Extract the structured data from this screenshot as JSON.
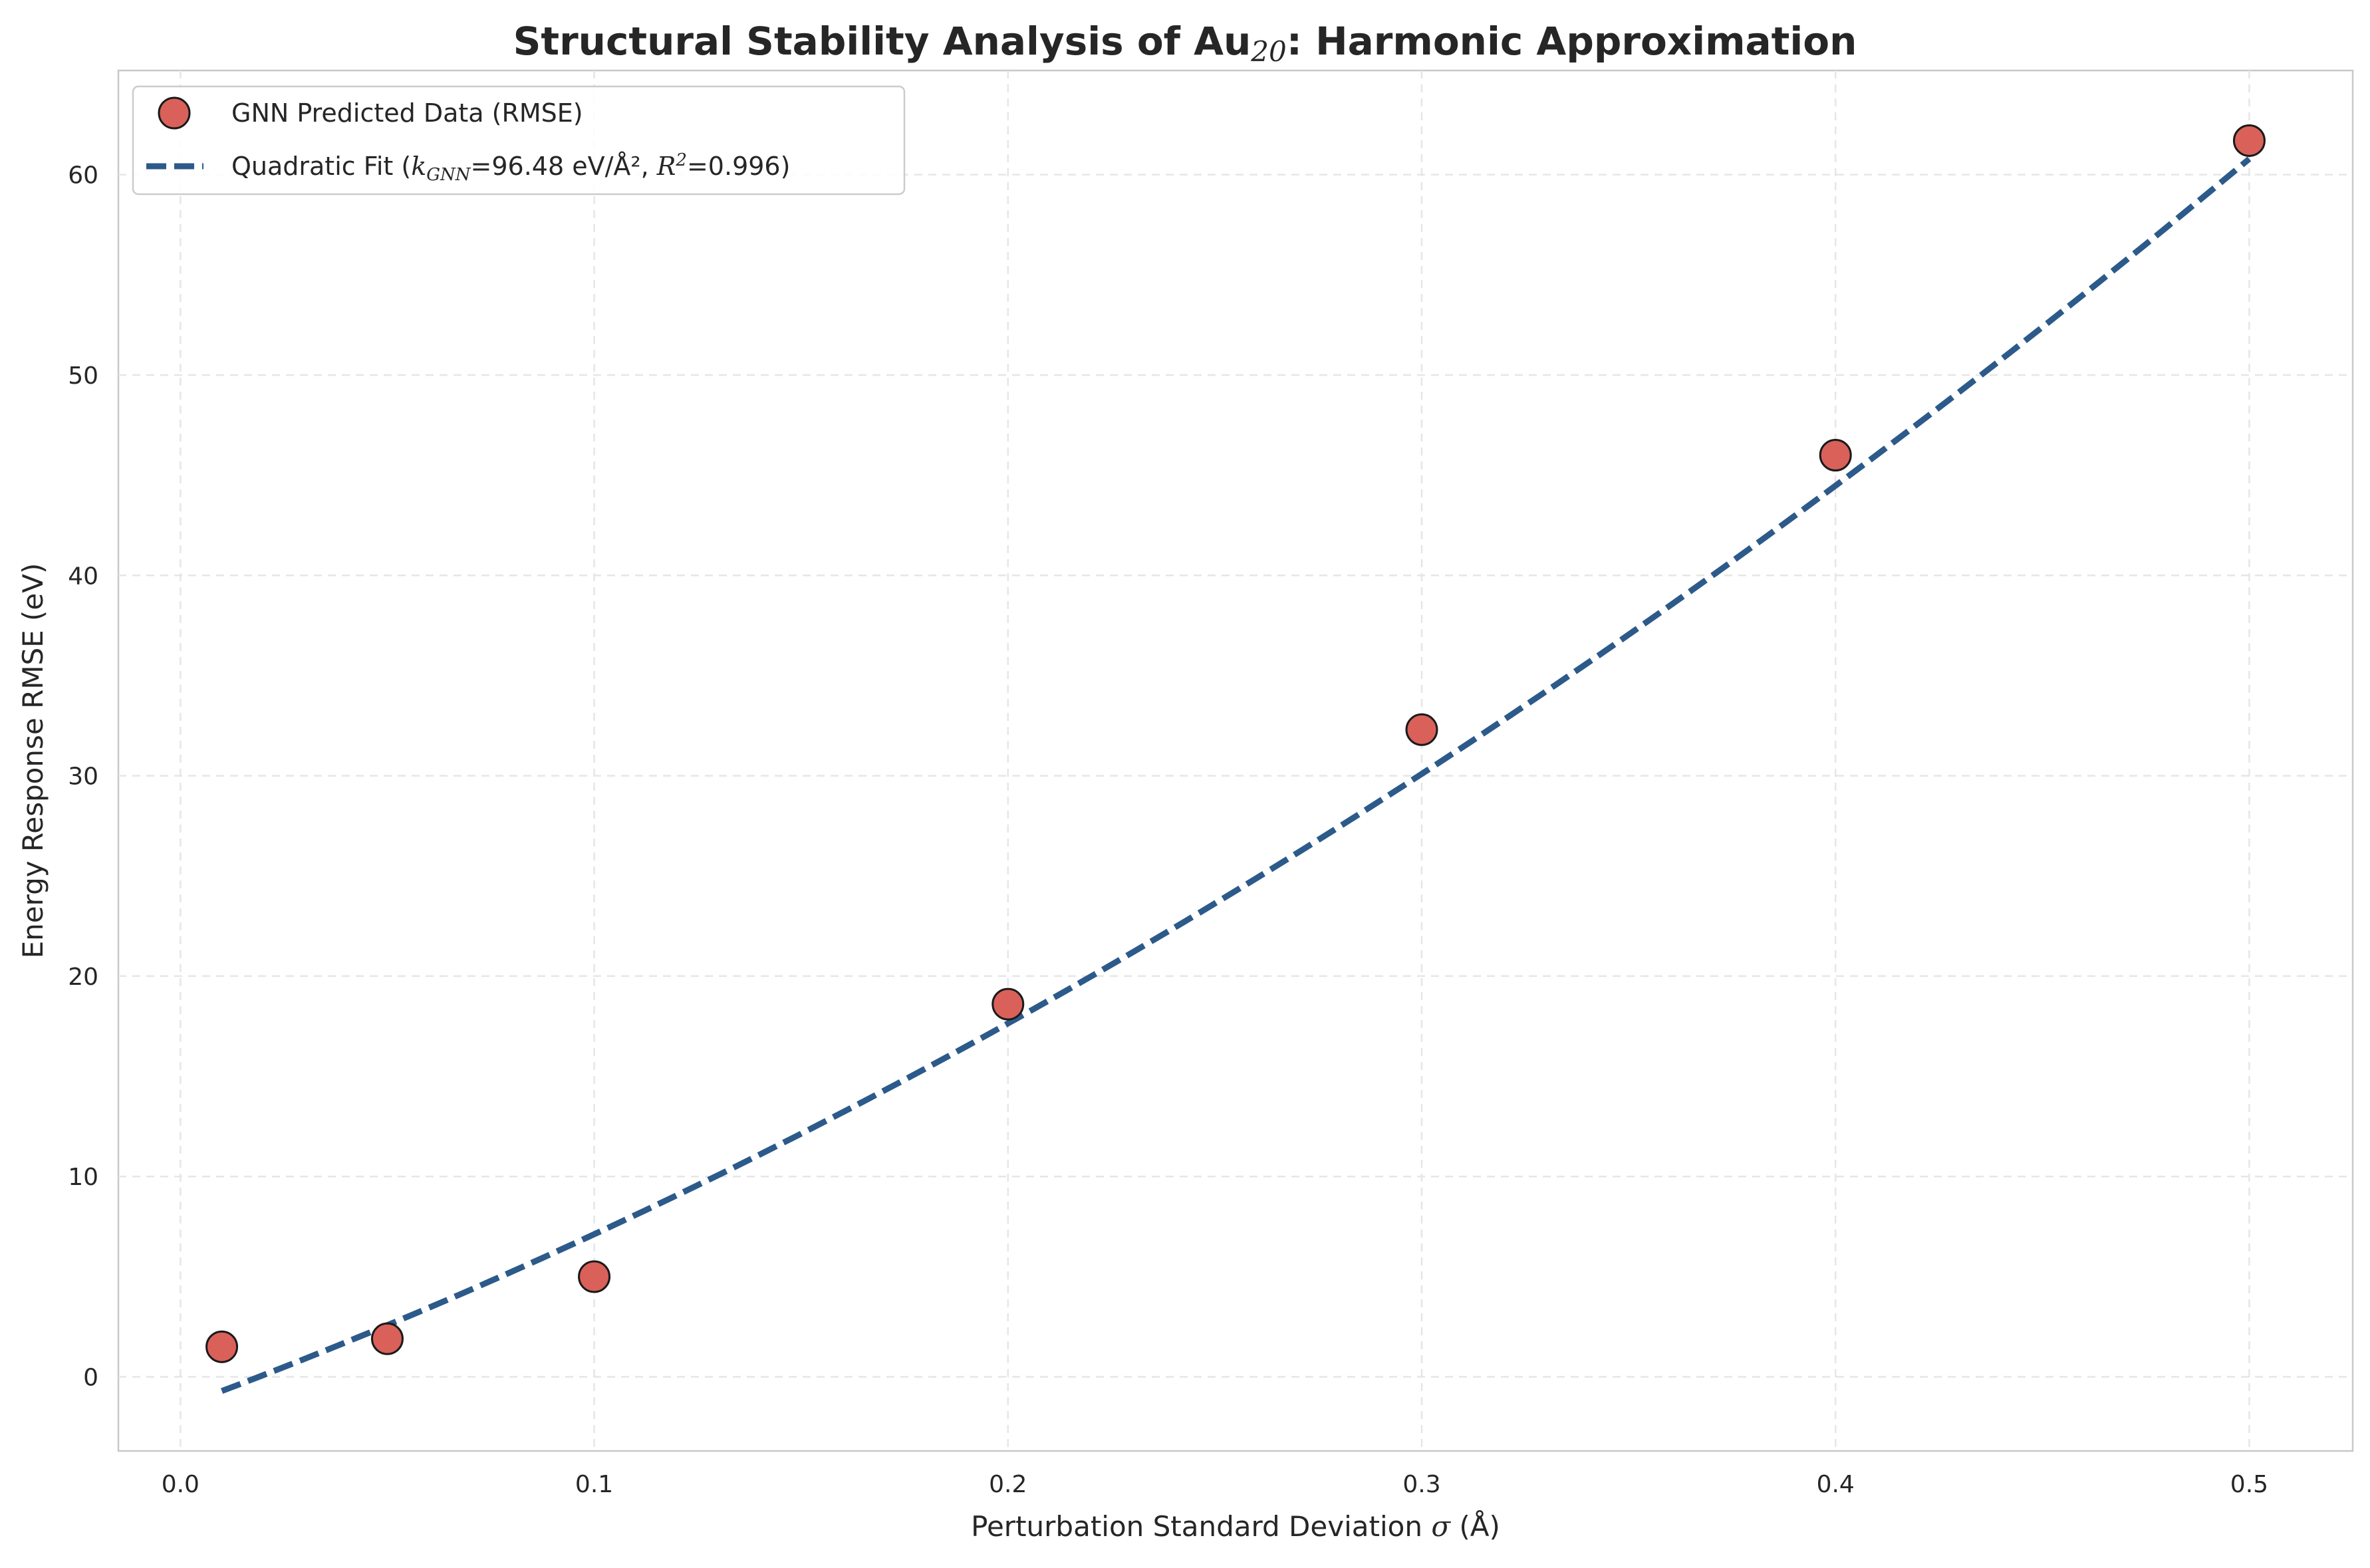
{
  "chart_data": {
    "type": "scatter",
    "title_parts": [
      "Structural Stability Analysis of Au",
      "20",
      ": Harmonic Approximation"
    ],
    "xlabel_parts": [
      "Perturbation Standard Deviation ",
      "σ",
      " (Å)"
    ],
    "ylabel": "Energy Response RMSE (eV)",
    "xlim": [
      -0.015,
      0.525
    ],
    "ylim": [
      -3.7,
      65.2
    ],
    "x_ticks": [
      0.0,
      0.1,
      0.2,
      0.3,
      0.4,
      0.5
    ],
    "x_tick_labels": [
      "0.0",
      "0.1",
      "0.2",
      "0.3",
      "0.4",
      "0.5"
    ],
    "y_ticks": [
      0,
      10,
      20,
      30,
      40,
      50,
      60
    ],
    "y_tick_labels": [
      "0",
      "10",
      "20",
      "30",
      "40",
      "50",
      "60"
    ],
    "grid": true,
    "legend_position": "top-left",
    "series": [
      {
        "name": "GNN Predicted Data (RMSE)",
        "kind": "scatter",
        "color": "#d9615a",
        "edge_color": "#1a1a1a",
        "x": [
          0.01,
          0.05,
          0.1,
          0.2,
          0.3,
          0.4,
          0.5
        ],
        "y": [
          1.5,
          1.9,
          5.0,
          18.6,
          32.3,
          46.0,
          61.7
        ]
      },
      {
        "name": "Quadratic Fit",
        "kind": "line",
        "style": "dashed",
        "color": "#2c5a8a",
        "equation": "y = 96.48·x² + 76.3·x − 1.48",
        "coefficients": {
          "a": 96.48,
          "b": 76.3,
          "c": -1.48
        },
        "x_range": [
          0.01,
          0.5
        ]
      }
    ],
    "legend_entries": [
      {
        "label": "GNN Predicted Data (RMSE)"
      },
      {
        "label_prefix": "Quadratic Fit (",
        "k_symbol": "k",
        "k_subscript": "GNN",
        "k_value": "=96.48 eV/Å², ",
        "r_symbol": "R",
        "r_superscript": "2",
        "r_value": "=0.996)"
      }
    ]
  }
}
